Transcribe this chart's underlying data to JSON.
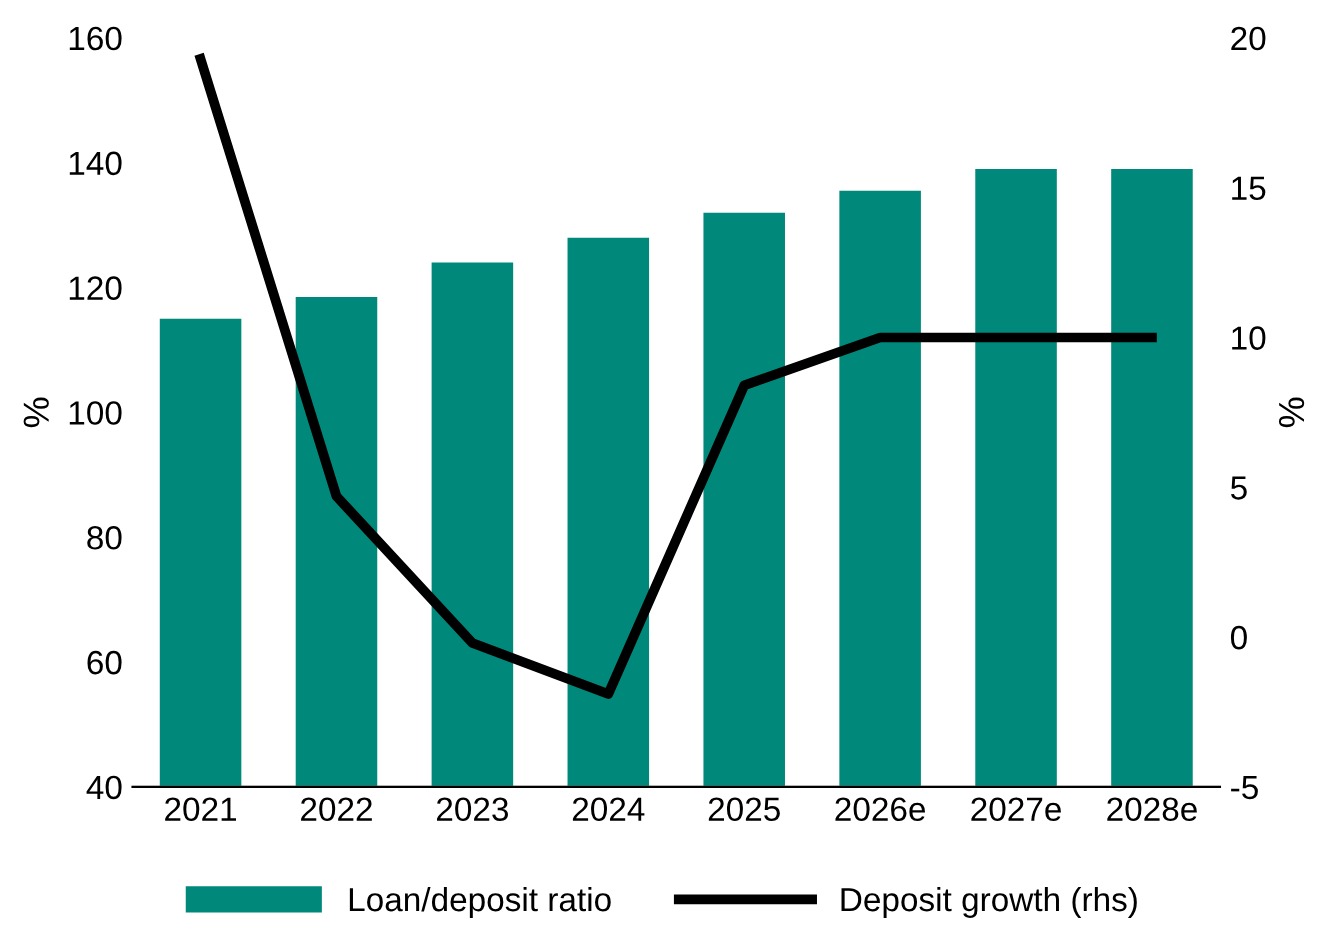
{
  "chart_data": {
    "type": "bar",
    "categories": [
      "2021",
      "2022",
      "2023",
      "2024",
      "2025",
      "2026e",
      "2027e",
      "2028e"
    ],
    "series": [
      {
        "name": "Loan/deposit ratio",
        "color": "#00897b",
        "values": [
          115,
          118.5,
          124,
          128,
          132,
          135.5,
          139,
          139
        ]
      },
      {
        "name": "Deposit growth (rhs)",
        "type": "line",
        "axis": "y2",
        "color": "#000000",
        "values": [
          19.3,
          4.7,
          -0.2,
          -1.9,
          8.4,
          10,
          10,
          10
        ]
      }
    ],
    "ylabel": "%",
    "y2label": "%",
    "ylim": [
      40,
      160
    ],
    "yticks": [
      40,
      60,
      80,
      100,
      120,
      140,
      160
    ],
    "y2lim": [
      -5,
      20
    ],
    "y2ticks": [
      -5,
      0,
      5,
      10,
      15,
      20
    ],
    "grid": false,
    "legend": "bottom",
    "marker": "none",
    "line_style": "solid"
  }
}
